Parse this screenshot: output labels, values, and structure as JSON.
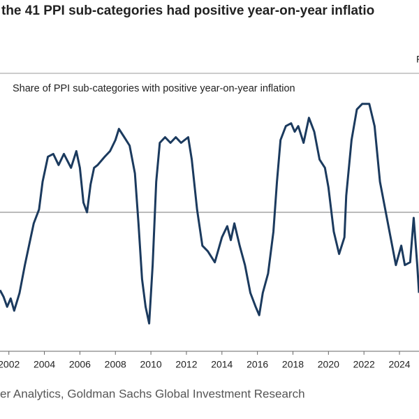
{
  "chart_data": {
    "type": "line",
    "title": "the 41 PPI sub-categories had positive year-on-year inflatio",
    "corner_note": "F",
    "subtitle": "Share of PPI sub-categories with positive year-on-year inflation",
    "source": "er Analytics, Goldman Sachs Global Investment Research",
    "xlim": [
      2001.5,
      2025.1
    ],
    "ylim": [
      0,
      100
    ],
    "xticks": [
      2002,
      2004,
      2006,
      2008,
      2010,
      2012,
      2014,
      2016,
      2018,
      2020,
      2022,
      2024
    ],
    "hlines": [
      50
    ],
    "x": [
      2001.5,
      2001.7,
      2001.9,
      2002.1,
      2002.3,
      2002.6,
      2002.9,
      2003.2,
      2003.4,
      2003.7,
      2003.9,
      2004.2,
      2004.5,
      2004.8,
      2005.1,
      2005.5,
      2005.8,
      2006.0,
      2006.2,
      2006.4,
      2006.6,
      2006.8,
      2007.0,
      2007.4,
      2007.7,
      2008.0,
      2008.2,
      2008.5,
      2008.8,
      2009.1,
      2009.3,
      2009.5,
      2009.7,
      2009.9,
      2010.1,
      2010.3,
      2010.5,
      2010.8,
      2011.1,
      2011.4,
      2011.7,
      2012.1,
      2012.3,
      2012.6,
      2012.9,
      2013.2,
      2013.6,
      2014.0,
      2014.3,
      2014.5,
      2014.7,
      2015.0,
      2015.3,
      2015.6,
      2015.9,
      2016.1,
      2016.3,
      2016.6,
      2016.9,
      2017.1,
      2017.3,
      2017.6,
      2017.9,
      2018.1,
      2018.3,
      2018.6,
      2018.9,
      2019.2,
      2019.5,
      2019.8,
      2020.0,
      2020.3,
      2020.6,
      2020.9,
      2021.0,
      2021.3,
      2021.6,
      2021.9,
      2022.3,
      2022.6,
      2022.9,
      2023.2,
      2023.5,
      2023.8,
      2024.1,
      2024.3,
      2024.6,
      2024.8,
      2025.0,
      2025.1
    ],
    "series": [
      {
        "name": "Share of PPI sub-categories with positive year-on-year inflation",
        "color": "#1b3a5e",
        "values": [
          22,
          19.6,
          16,
          19,
          14.6,
          21,
          31,
          40,
          46,
          51,
          61,
          70,
          71,
          67,
          71,
          66,
          72,
          66,
          53.5,
          50,
          60,
          66,
          67,
          70,
          72,
          76,
          80,
          77,
          74,
          64,
          46,
          26,
          16,
          10,
          31,
          61,
          75,
          77,
          75,
          77,
          75,
          77,
          69,
          51,
          38,
          36,
          32,
          41,
          45,
          40,
          46,
          38,
          31,
          21,
          16,
          13,
          21,
          28,
          43,
          61,
          76,
          81,
          82,
          79,
          81,
          75,
          84,
          79,
          69,
          66,
          59,
          43,
          35,
          41,
          56,
          76,
          87,
          89,
          89,
          81,
          61,
          51,
          41,
          31,
          38,
          31,
          32,
          48,
          31,
          21
        ]
      }
    ]
  }
}
